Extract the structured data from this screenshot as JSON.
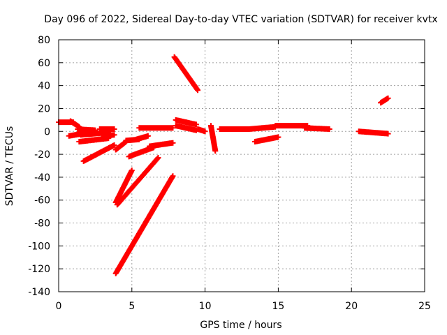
{
  "chart_data": {
    "type": "scatter",
    "title": "Day 096 of 2022, Sidereal Day-to-day VTEC variation (SDTVAR) for receiver kvtx",
    "xlabel": "GPS time / hours",
    "ylabel": "SDTVAR / TECUs",
    "xlim": [
      0,
      25
    ],
    "ylim": [
      -140,
      80
    ],
    "xticks": [
      "0",
      "5",
      "10",
      "15",
      "20",
      "25"
    ],
    "yticks": [
      "80",
      "60",
      "40",
      "20",
      "0",
      "-20",
      "-40",
      "-60",
      "-80",
      "-100",
      "-120",
      "-140"
    ],
    "grid": true,
    "marker": "+",
    "colors": {
      "series": "#ff0000",
      "grid": "#a0a0a0",
      "axis": "#000000"
    },
    "segments": [
      {
        "x": [
          0.0,
          1.0
        ],
        "y": [
          8,
          8
        ]
      },
      {
        "x": [
          0.8,
          1.4
        ],
        "y": [
          9,
          4
        ]
      },
      {
        "x": [
          0.7,
          1.6
        ],
        "y": [
          -4,
          -2
        ]
      },
      {
        "x": [
          1.3,
          2.5
        ],
        "y": [
          2,
          1
        ]
      },
      {
        "x": [
          1.5,
          3.4
        ],
        "y": [
          -3,
          -1
        ]
      },
      {
        "x": [
          1.4,
          3.4
        ],
        "y": [
          -9,
          -6
        ]
      },
      {
        "x": [
          2.8,
          3.8
        ],
        "y": [
          2,
          2
        ]
      },
      {
        "x": [
          1.7,
          3.8
        ],
        "y": [
          -26,
          -12
        ]
      },
      {
        "x": [
          3.1,
          3.8
        ],
        "y": [
          -4,
          -3
        ]
      },
      {
        "x": [
          3.9,
          4.6
        ],
        "y": [
          -16,
          -9
        ]
      },
      {
        "x": [
          3.9,
          5.0
        ],
        "y": [
          -62,
          -34
        ]
      },
      {
        "x": [
          4.0,
          6.8
        ],
        "y": [
          -64,
          -23
        ]
      },
      {
        "x": [
          3.9,
          7.8
        ],
        "y": [
          -124,
          -39
        ]
      },
      {
        "x": [
          4.6,
          5.5
        ],
        "y": [
          -8,
          -7
        ]
      },
      {
        "x": [
          4.8,
          6.5
        ],
        "y": [
          -22,
          -14
        ]
      },
      {
        "x": [
          5.3,
          6.1
        ],
        "y": [
          -7,
          -4
        ]
      },
      {
        "x": [
          5.5,
          7.8
        ],
        "y": [
          3,
          3
        ]
      },
      {
        "x": [
          6.2,
          7.8
        ],
        "y": [
          -13,
          -10
        ]
      },
      {
        "x": [
          7.9,
          9.5
        ],
        "y": [
          65,
          36
        ]
      },
      {
        "x": [
          8.0,
          9.4
        ],
        "y": [
          10,
          6
        ]
      },
      {
        "x": [
          8.0,
          9.4
        ],
        "y": [
          5,
          1
        ]
      },
      {
        "x": [
          9.5,
          10.0
        ],
        "y": [
          2,
          0
        ]
      },
      {
        "x": [
          10.4,
          10.7
        ],
        "y": [
          5,
          -17
        ]
      },
      {
        "x": [
          11.0,
          13.0
        ],
        "y": [
          2,
          2
        ]
      },
      {
        "x": [
          13.0,
          14.8
        ],
        "y": [
          2,
          4
        ]
      },
      {
        "x": [
          13.4,
          15.0
        ],
        "y": [
          -9,
          -5
        ]
      },
      {
        "x": [
          14.8,
          17.0
        ],
        "y": [
          5,
          5
        ]
      },
      {
        "x": [
          16.8,
          18.5
        ],
        "y": [
          3,
          2
        ]
      },
      {
        "x": [
          20.5,
          22.5
        ],
        "y": [
          0,
          -2
        ]
      },
      {
        "x": [
          22.0,
          22.5
        ],
        "y": [
          25,
          29
        ]
      }
    ]
  }
}
